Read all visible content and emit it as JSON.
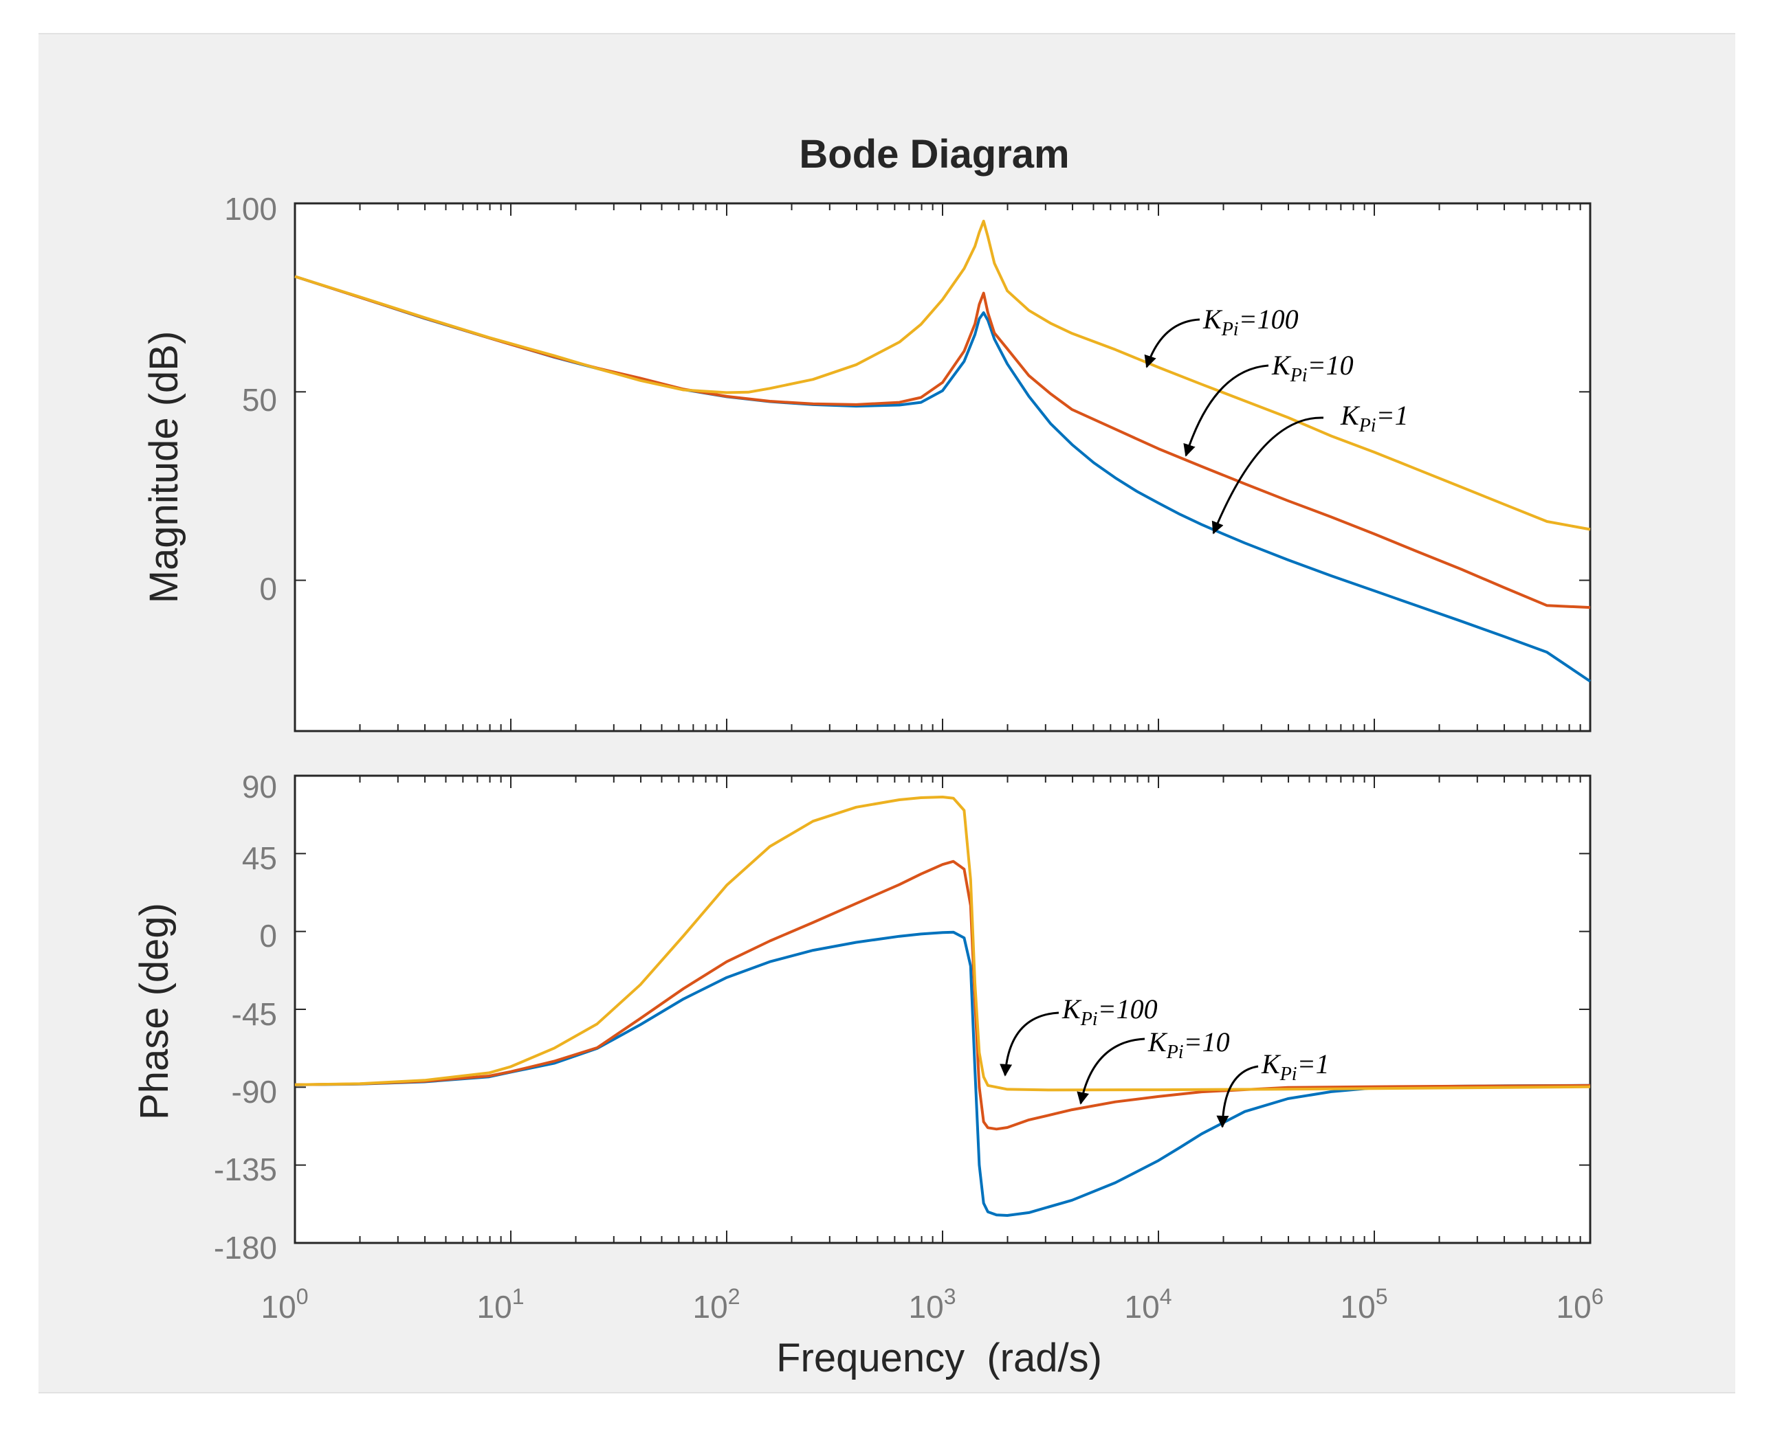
{
  "chart_data": [
    {
      "type": "line",
      "panel": "magnitude",
      "title": "Bode Diagram",
      "ylabel": "Magnitude (dB)",
      "xscale": "log",
      "xlim_exponent": [
        0,
        6
      ],
      "ylim": [
        -40,
        100
      ],
      "yticks": [
        0,
        50,
        100
      ],
      "ytick_labels": [
        "0",
        "50",
        "100"
      ],
      "grid": false,
      "series": [
        {
          "name": "KPi=1",
          "color": "#0072BD",
          "points": [
            [
              0,
              80.6
            ],
            [
              0.3,
              75.1
            ],
            [
              0.6,
              69.5
            ],
            [
              0.9,
              64.3
            ],
            [
              1.0,
              62.6
            ],
            [
              1.2,
              59.2
            ],
            [
              1.4,
              56.2
            ],
            [
              1.6,
              53.2
            ],
            [
              1.8,
              50.6
            ],
            [
              2.0,
              48.7
            ],
            [
              2.2,
              47.4
            ],
            [
              2.4,
              46.6
            ],
            [
              2.6,
              46.2
            ],
            [
              2.8,
              46.5
            ],
            [
              2.9,
              47.2
            ],
            [
              3.0,
              50.3
            ],
            [
              3.1,
              58.1
            ],
            [
              3.15,
              65.2
            ],
            [
              3.17,
              69.4
            ],
            [
              3.19,
              71.0
            ],
            [
              3.21,
              69.0
            ],
            [
              3.24,
              64.0
            ],
            [
              3.3,
              57.4
            ],
            [
              3.4,
              48.8
            ],
            [
              3.5,
              41.6
            ],
            [
              3.6,
              36.0
            ],
            [
              3.7,
              31.2
            ],
            [
              3.8,
              27.2
            ],
            [
              3.9,
              23.6
            ],
            [
              4.0,
              20.5
            ],
            [
              4.1,
              17.5
            ],
            [
              4.2,
              14.8
            ],
            [
              4.3,
              12.3
            ],
            [
              4.4,
              9.9
            ],
            [
              4.6,
              5.4
            ],
            [
              4.8,
              1.2
            ],
            [
              5.0,
              -2.8
            ],
            [
              5.2,
              -6.8
            ],
            [
              5.4,
              -10.8
            ],
            [
              5.6,
              -14.9
            ],
            [
              5.8,
              -19.1
            ],
            [
              6.0,
              -26.8
            ]
          ]
        },
        {
          "name": "KPi=10",
          "color": "#D95319",
          "points": [
            [
              0,
              80.6
            ],
            [
              0.3,
              75.1
            ],
            [
              0.6,
              69.6
            ],
            [
              0.9,
              64.3
            ],
            [
              1.0,
              62.6
            ],
            [
              1.2,
              59.3
            ],
            [
              1.4,
              56.3
            ],
            [
              1.6,
              53.6
            ],
            [
              1.8,
              50.7
            ],
            [
              2.0,
              48.8
            ],
            [
              2.2,
              47.5
            ],
            [
              2.4,
              46.8
            ],
            [
              2.6,
              46.6
            ],
            [
              2.8,
              47.2
            ],
            [
              2.9,
              48.5
            ],
            [
              3.0,
              52.5
            ],
            [
              3.1,
              60.8
            ],
            [
              3.15,
              68.0
            ],
            [
              3.17,
              73.2
            ],
            [
              3.19,
              76.2
            ],
            [
              3.21,
              71.0
            ],
            [
              3.24,
              65.6
            ],
            [
              3.3,
              61.4
            ],
            [
              3.4,
              54.3
            ],
            [
              3.5,
              49.5
            ],
            [
              3.6,
              45.3
            ],
            [
              3.8,
              40.1
            ],
            [
              4.0,
              34.9
            ],
            [
              4.2,
              30.2
            ],
            [
              4.4,
              25.6
            ],
            [
              4.6,
              21.1
            ],
            [
              4.8,
              16.8
            ],
            [
              5.0,
              12.3
            ],
            [
              5.2,
              7.6
            ],
            [
              5.4,
              3.0
            ],
            [
              5.6,
              -1.9
            ],
            [
              5.8,
              -6.7
            ],
            [
              6.0,
              -7.2
            ]
          ]
        },
        {
          "name": "KPi=100",
          "color": "#EDB120",
          "points": [
            [
              0,
              80.6
            ],
            [
              0.3,
              75.2
            ],
            [
              0.6,
              69.7
            ],
            [
              0.9,
              64.4
            ],
            [
              1.0,
              62.8
            ],
            [
              1.2,
              59.6
            ],
            [
              1.4,
              56.2
            ],
            [
              1.6,
              53.0
            ],
            [
              1.8,
              50.5
            ],
            [
              2.0,
              49.8
            ],
            [
              2.1,
              49.9
            ],
            [
              2.2,
              50.9
            ],
            [
              2.4,
              53.3
            ],
            [
              2.6,
              57.2
            ],
            [
              2.8,
              63.2
            ],
            [
              2.9,
              67.9
            ],
            [
              3.0,
              74.5
            ],
            [
              3.1,
              82.7
            ],
            [
              3.15,
              88.6
            ],
            [
              3.17,
              92.3
            ],
            [
              3.19,
              95.3
            ],
            [
              3.21,
              91.2
            ],
            [
              3.24,
              84.1
            ],
            [
              3.3,
              76.8
            ],
            [
              3.4,
              71.6
            ],
            [
              3.5,
              68.2
            ],
            [
              3.6,
              65.5
            ],
            [
              3.8,
              61.2
            ],
            [
              4.0,
              56.5
            ],
            [
              4.2,
              52.0
            ],
            [
              4.4,
              47.6
            ],
            [
              4.6,
              43.2
            ],
            [
              4.8,
              38.3
            ],
            [
              5.0,
              34.0
            ],
            [
              5.2,
              29.4
            ],
            [
              5.4,
              24.8
            ],
            [
              5.6,
              20.2
            ],
            [
              5.8,
              15.6
            ],
            [
              6.0,
              13.5
            ]
          ]
        }
      ],
      "annotations": [
        {
          "base": "K",
          "sub": "Pi",
          "rest": "=100"
        },
        {
          "base": "K",
          "sub": "Pi",
          "rest": "=10"
        },
        {
          "base": "K",
          "sub": "Pi",
          "rest": "=1"
        }
      ]
    },
    {
      "type": "line",
      "panel": "phase",
      "xlabel": "Frequency  (rad/s)",
      "ylabel": "Phase (deg)",
      "xscale": "log",
      "xlim_exponent": [
        0,
        6
      ],
      "xtick_base": "10",
      "xtick_exponents": [
        "0",
        "1",
        "2",
        "3",
        "4",
        "5",
        "6"
      ],
      "ylim": [
        -180,
        90
      ],
      "yticks": [
        90,
        45,
        0,
        -45,
        -90,
        -135,
        -180
      ],
      "ytick_labels": [
        "90",
        "45",
        "0",
        "-45",
        "-90",
        "-135",
        "-180"
      ],
      "grid": false,
      "series": [
        {
          "name": "KPi=1",
          "color": "#0072BD",
          "points": [
            [
              0,
              -88.6
            ],
            [
              0.3,
              -88.2
            ],
            [
              0.6,
              -86.9
            ],
            [
              0.9,
              -84.0
            ],
            [
              1.0,
              -81.3
            ],
            [
              1.2,
              -76.2
            ],
            [
              1.4,
              -67.6
            ],
            [
              1.6,
              -53.9
            ],
            [
              1.8,
              -39.0
            ],
            [
              2.0,
              -26.6
            ],
            [
              2.2,
              -17.5
            ],
            [
              2.4,
              -10.9
            ],
            [
              2.6,
              -6.3
            ],
            [
              2.8,
              -2.8
            ],
            [
              2.9,
              -1.5
            ],
            [
              3.0,
              -0.6
            ],
            [
              3.05,
              -0.4
            ],
            [
              3.1,
              -3.7
            ],
            [
              3.13,
              -20.0
            ],
            [
              3.15,
              -80.0
            ],
            [
              3.17,
              -135.0
            ],
            [
              3.19,
              -157.0
            ],
            [
              3.21,
              -162.0
            ],
            [
              3.25,
              -163.8
            ],
            [
              3.3,
              -164.1
            ],
            [
              3.4,
              -162.5
            ],
            [
              3.6,
              -155.3
            ],
            [
              3.8,
              -145.2
            ],
            [
              4.0,
              -132.4
            ],
            [
              4.1,
              -124.8
            ],
            [
              4.2,
              -117.0
            ],
            [
              4.4,
              -104.1
            ],
            [
              4.6,
              -96.6
            ],
            [
              4.8,
              -92.6
            ],
            [
              5.0,
              -90.4
            ],
            [
              5.3,
              -89.5
            ],
            [
              5.6,
              -89.2
            ],
            [
              6.0,
              -89.0
            ]
          ]
        },
        {
          "name": "KPi=10",
          "color": "#D95319",
          "points": [
            [
              0,
              -88.6
            ],
            [
              0.3,
              -88.1
            ],
            [
              0.6,
              -86.6
            ],
            [
              0.9,
              -83.5
            ],
            [
              1.0,
              -81.0
            ],
            [
              1.2,
              -75.0
            ],
            [
              1.4,
              -67.2
            ],
            [
              1.6,
              -50.3
            ],
            [
              1.8,
              -33.0
            ],
            [
              2.0,
              -17.5
            ],
            [
              2.2,
              -5.5
            ],
            [
              2.4,
              5.2
            ],
            [
              2.6,
              16.2
            ],
            [
              2.8,
              27.1
            ],
            [
              2.9,
              33.2
            ],
            [
              3.0,
              38.7
            ],
            [
              3.05,
              40.5
            ],
            [
              3.1,
              36.0
            ],
            [
              3.13,
              15.0
            ],
            [
              3.15,
              -40.0
            ],
            [
              3.17,
              -90.0
            ],
            [
              3.19,
              -110.0
            ],
            [
              3.21,
              -113.4
            ],
            [
              3.25,
              -114.2
            ],
            [
              3.3,
              -113.3
            ],
            [
              3.4,
              -108.9
            ],
            [
              3.5,
              -106.0
            ],
            [
              3.6,
              -103.0
            ],
            [
              3.8,
              -98.5
            ],
            [
              4.0,
              -95.4
            ],
            [
              4.2,
              -92.7
            ],
            [
              4.6,
              -90.2
            ],
            [
              5.0,
              -89.7
            ],
            [
              6.0,
              -89.0
            ]
          ]
        },
        {
          "name": "KPi=100",
          "color": "#EDB120",
          "points": [
            [
              0,
              -88.6
            ],
            [
              0.3,
              -88.0
            ],
            [
              0.6,
              -86.0
            ],
            [
              0.9,
              -81.7
            ],
            [
              1.0,
              -78.1
            ],
            [
              1.2,
              -67.5
            ],
            [
              1.4,
              -53.4
            ],
            [
              1.6,
              -30.8
            ],
            [
              1.8,
              -2.5
            ],
            [
              2.0,
              26.7
            ],
            [
              2.2,
              49.1
            ],
            [
              2.4,
              63.7
            ],
            [
              2.6,
              71.8
            ],
            [
              2.8,
              76.1
            ],
            [
              2.9,
              77.3
            ],
            [
              3.0,
              77.7
            ],
            [
              3.05,
              77.0
            ],
            [
              3.1,
              70.0
            ],
            [
              3.13,
              30.0
            ],
            [
              3.15,
              -30.0
            ],
            [
              3.17,
              -70.0
            ],
            [
              3.19,
              -84.0
            ],
            [
              3.21,
              -89.0
            ],
            [
              3.3,
              -91.2
            ],
            [
              3.5,
              -91.6
            ],
            [
              4.0,
              -91.5
            ],
            [
              4.5,
              -91.2
            ],
            [
              5.0,
              -90.8
            ],
            [
              6.0,
              -89.8
            ]
          ]
        }
      ],
      "annotations": [
        {
          "base": "K",
          "sub": "Pi",
          "rest": "=100"
        },
        {
          "base": "K",
          "sub": "Pi",
          "rest": "=10"
        },
        {
          "base": "K",
          "sub": "Pi",
          "rest": "=1"
        }
      ]
    }
  ]
}
